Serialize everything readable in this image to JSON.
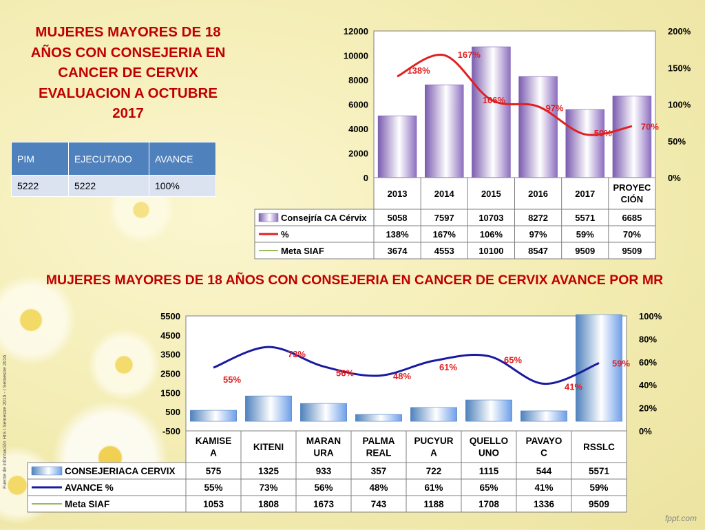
{
  "top_title": [
    "MUJERES MAYORES DE 18",
    "AÑOS CON CONSEJERIA EN",
    "CANCER DE CERVIX",
    "EVALUACION A OCTUBRE",
    "2017"
  ],
  "pim_table": {
    "headers": [
      "PIM",
      "EJECUTADO",
      "AVANCE"
    ],
    "row": [
      "5222",
      "5222",
      "100%"
    ]
  },
  "bottom_title": "MUJERES MAYORES DE 18 AÑOS CON CONSEJERIA EN CANCER DE CERVIX AVANCE POR MR",
  "source_note": "Fuente de información HIS I Semestre 2015 - I Semestre 2016",
  "watermark": "fppt.com",
  "chart_data": [
    {
      "type": "bar",
      "categories": [
        "2013",
        "2014",
        "2015",
        "2016",
        "2017",
        "PROYEC CIÓN"
      ],
      "ylim": [
        0,
        12000
      ],
      "y_ticks": [
        "0",
        "2000",
        "4000",
        "6000",
        "8000",
        "10000",
        "12000"
      ],
      "y2lim": [
        0,
        200
      ],
      "y2_ticks": [
        "0%",
        "50%",
        "100%",
        "150%",
        "200%"
      ],
      "series": [
        {
          "name": "Consejría CA Cérvix",
          "kind": "bar",
          "values": [
            5058,
            7597,
            10703,
            8272,
            5571,
            6685
          ],
          "table_values": [
            "5058",
            "7597",
            "10703",
            "8272",
            "5571",
            "6685"
          ],
          "color": "#8d6fc0"
        },
        {
          "name": "%",
          "kind": "line",
          "axis": "secondary",
          "values": [
            138,
            167,
            106,
            97,
            59,
            70
          ],
          "labels": [
            "138%",
            "167%",
            "106%",
            "97%",
            "59%",
            "70%"
          ],
          "table_values": [
            "138%",
            "167%",
            "106%",
            "97%",
            "59%",
            "70%"
          ],
          "color": "#e02020"
        },
        {
          "name": "Meta SIAF",
          "kind": "table",
          "table_values": [
            "3674",
            "4553",
            "10100",
            "8547",
            "9509",
            "9509"
          ],
          "color": "#9bbb59"
        }
      ]
    },
    {
      "type": "bar",
      "categories": [
        "KAMISE A",
        "KITENI",
        "MARAN URA",
        "PALMA REAL",
        "PUCYUR A",
        "QUELLO UNO",
        "PAVAYO C",
        "RSSLC"
      ],
      "ylim": [
        -500,
        5500
      ],
      "y_ticks": [
        "-500",
        "500",
        "1500",
        "2500",
        "3500",
        "4500",
        "5500"
      ],
      "y2lim": [
        0,
        100
      ],
      "y2_ticks": [
        "0%",
        "20%",
        "40%",
        "60%",
        "80%",
        "100%"
      ],
      "series": [
        {
          "name": "CONSEJERIACA CERVIX",
          "kind": "bar",
          "values": [
            575,
            1325,
            933,
            357,
            722,
            1115,
            544,
            5571
          ],
          "table_values": [
            "575",
            "1325",
            "933",
            "357",
            "722",
            "1115",
            "544",
            "5571"
          ],
          "color": "#6d9ee8"
        },
        {
          "name": "AVANCE  %",
          "kind": "line",
          "axis": "secondary",
          "values": [
            55,
            73,
            56,
            48,
            61,
            65,
            41,
            59
          ],
          "labels": [
            "55%",
            "73%",
            "56%",
            "48%",
            "61%",
            "65%",
            "41%",
            "59%"
          ],
          "table_values": [
            "55%",
            "73%",
            "56%",
            "48%",
            "61%",
            "65%",
            "41%",
            "59%"
          ],
          "color": "#1a1aa0"
        },
        {
          "name": "Meta SIAF",
          "kind": "table",
          "table_values": [
            "1053",
            "1808",
            "1673",
            "743",
            "1188",
            "1708",
            "1336",
            "9509"
          ],
          "color": "#9bbb59"
        }
      ]
    }
  ]
}
